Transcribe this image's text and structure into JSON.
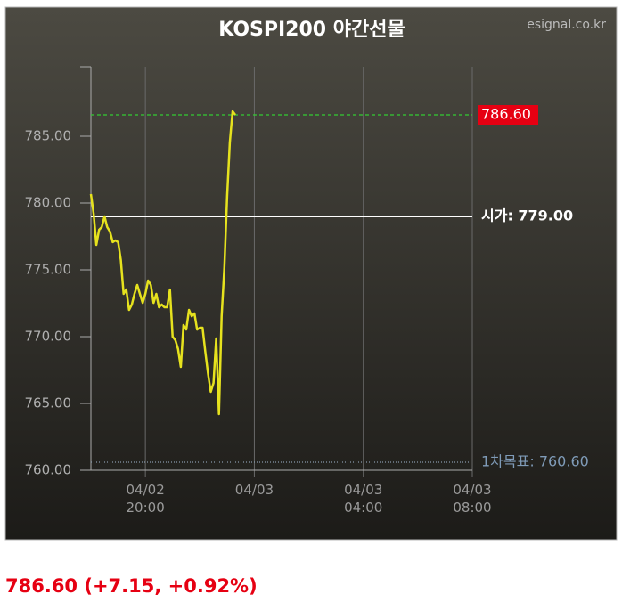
{
  "chart_data": {
    "type": "line",
    "title": "KOSPI200 야간선물",
    "source": "esignal.co.kr",
    "x": [
      18.0,
      18.1,
      18.2,
      18.3,
      18.4,
      18.5,
      18.6,
      18.7,
      18.8,
      18.9,
      19.0,
      19.1,
      19.2,
      19.3,
      19.4,
      19.5,
      19.6,
      19.7,
      19.8,
      19.9,
      20.0,
      20.1,
      20.2,
      20.3,
      20.4,
      20.5,
      20.6,
      20.7,
      20.8,
      20.9,
      21.0,
      21.1,
      21.2,
      21.3,
      21.4,
      21.5,
      21.6,
      21.7,
      21.8,
      21.9,
      22.0,
      22.1,
      22.2,
      22.3,
      22.4,
      22.5,
      22.6,
      22.7,
      22.8,
      22.9,
      23.0,
      23.1,
      23.2,
      23.3
    ],
    "series": [
      {
        "name": "KOSPI200",
        "color": "#e6e21e",
        "values": [
          780.67,
          779.2,
          776.87,
          778.0,
          778.2,
          779.0,
          778.2,
          777.87,
          777.07,
          777.2,
          777.07,
          775.73,
          773.2,
          773.53,
          772.0,
          772.4,
          773.2,
          773.87,
          773.2,
          772.53,
          773.2,
          774.2,
          773.87,
          772.53,
          773.2,
          772.2,
          772.4,
          772.2,
          772.2,
          773.53,
          770.0,
          769.73,
          769.07,
          767.73,
          770.87,
          770.53,
          772.0,
          771.53,
          771.73,
          770.53,
          770.67,
          770.67,
          768.87,
          767.2,
          765.87,
          766.53,
          769.87,
          764.2,
          771.53,
          775.2,
          780.53,
          784.53,
          786.87,
          786.6
        ]
      }
    ],
    "xlim": [
      18,
      32
    ],
    "xticks": [
      {
        "value": 20,
        "label": "04/02\n20:00"
      },
      {
        "value": 24,
        "label": "04/03"
      },
      {
        "value": 28,
        "label": "04/03\n04:00"
      },
      {
        "value": 32,
        "label": "04/03\n08:00"
      }
    ],
    "ylim": [
      760,
      790.2
    ],
    "yticks": [
      {
        "value": 760,
        "label": "760.00"
      },
      {
        "value": 765,
        "label": "765.00"
      },
      {
        "value": 770,
        "label": "770.00"
      },
      {
        "value": 775,
        "label": "775.00"
      },
      {
        "value": 780,
        "label": "780.00"
      },
      {
        "value": 785,
        "label": "785.00"
      }
    ],
    "levels": [
      {
        "value": 786.6,
        "text": "786.60",
        "color": "#33cc33",
        "style": "dashed",
        "label_box": "#e60012",
        "label_color": "#ffffff"
      },
      {
        "value": 779,
        "text": "시가: 779.00",
        "color": "#ffffff",
        "style": "solid",
        "label_color": "#ffffff"
      },
      {
        "value": 760.6,
        "text": "1차목표: 760.60",
        "color": "#8899aa",
        "style": "dotted",
        "label_color": "#7f9bb8"
      }
    ],
    "footer": "786.60 (+7.15, +0.92%)"
  }
}
